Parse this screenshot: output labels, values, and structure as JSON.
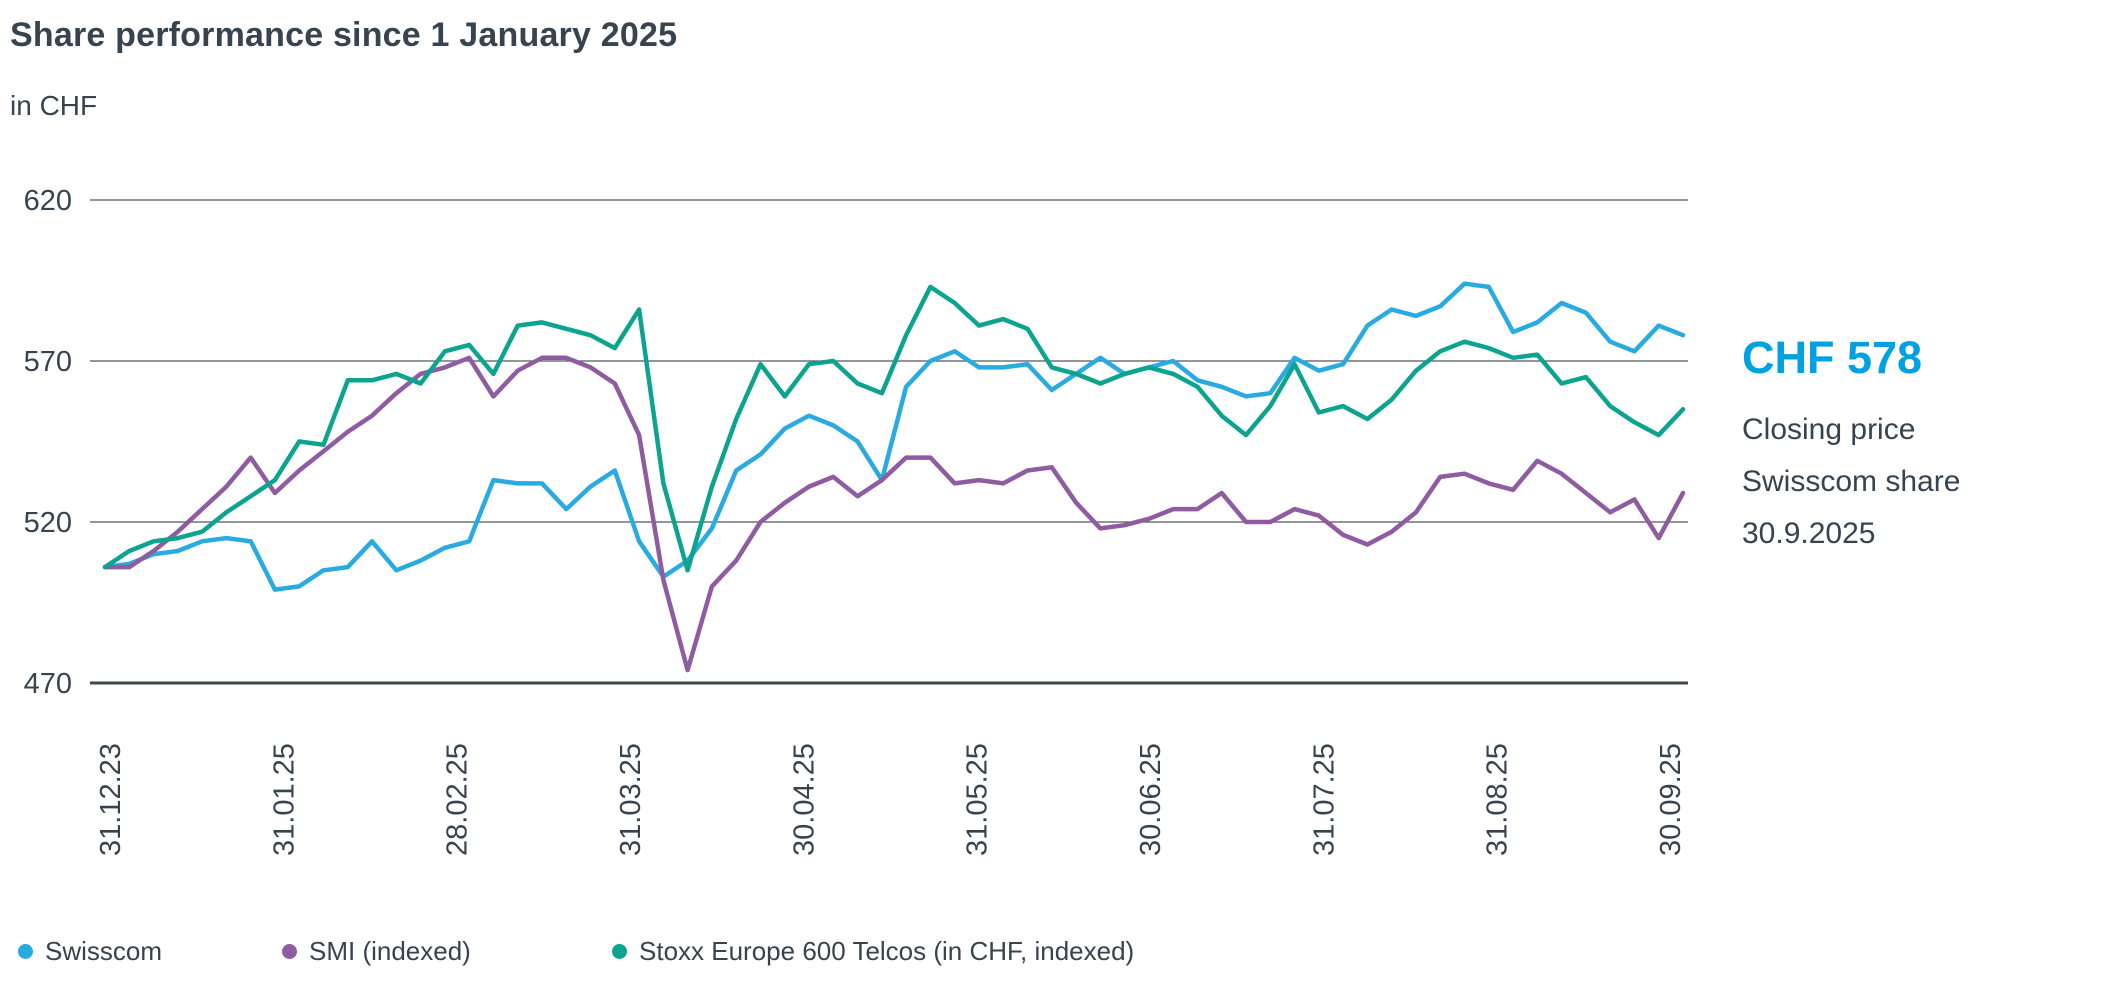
{
  "header": {
    "title": "Share performance since 1 January 2025",
    "subtitle": "in CHF"
  },
  "annotation": {
    "price": "CHF 578",
    "lines": [
      "Closing price",
      "Swisscom share",
      "30.9.2025"
    ],
    "price_color": "#00A1E3"
  },
  "colors": {
    "text": "#37434F",
    "gridline": "#50565C",
    "axis_line": "#42474D"
  },
  "chart_data": {
    "type": "line",
    "title": "Share performance since 1 January 2025",
    "xlabel": "",
    "ylabel": "in CHF",
    "ylim": [
      470,
      620
    ],
    "yticks": [
      620,
      570,
      520,
      470
    ],
    "grid": "horizontal",
    "legend_position": "bottom",
    "x_tick_labels": [
      "31.12.23",
      "31.01.25",
      "28.02.25",
      "31.03.25",
      "30.04.25",
      "31.05.25",
      "30.06.25",
      "31.07.25",
      "31.08.25",
      "30.09.25"
    ],
    "series": [
      {
        "id": "swisscom",
        "name": "Swisscom",
        "color": "#29ABE2",
        "values": [
          506,
          507,
          510,
          511,
          514,
          515,
          514,
          499,
          500,
          505,
          506,
          514,
          505,
          508,
          512,
          514,
          533,
          532,
          532,
          524,
          531,
          536,
          514,
          503,
          508,
          518,
          536,
          541,
          549,
          553,
          550,
          545,
          533,
          562,
          570,
          573,
          568,
          568,
          569,
          561,
          566,
          571,
          566,
          568,
          570,
          564,
          562,
          559,
          560,
          571,
          567,
          569,
          581,
          586,
          584,
          587,
          594,
          593,
          579,
          582,
          588,
          585,
          576,
          573,
          581,
          578
        ]
      },
      {
        "id": "smi",
        "name": "SMI (indexed)",
        "color": "#8F5CA1",
        "values": [
          506,
          506,
          511,
          517,
          524,
          531,
          540,
          529,
          536,
          542,
          548,
          553,
          560,
          566,
          568,
          571,
          559,
          567,
          571,
          571,
          568,
          563,
          547,
          502,
          474,
          500,
          508,
          520,
          526,
          531,
          534,
          528,
          533,
          540,
          540,
          532,
          533,
          532,
          536,
          537,
          526,
          518,
          519,
          521,
          524,
          524,
          529,
          520,
          520,
          524,
          522,
          516,
          513,
          517,
          523,
          534,
          535,
          532,
          530,
          539,
          535,
          529,
          523,
          527,
          515,
          529
        ]
      },
      {
        "id": "stoxx",
        "name": "Stoxx Europe 600 Telcos (in CHF, indexed)",
        "color": "#0CA48F",
        "values": [
          506,
          511,
          514,
          515,
          517,
          523,
          528,
          533,
          545,
          544,
          564,
          564,
          566,
          563,
          573,
          575,
          566,
          581,
          582,
          580,
          578,
          574,
          586,
          532,
          505,
          531,
          552,
          569,
          559,
          569,
          570,
          563,
          560,
          578,
          593,
          588,
          581,
          583,
          580,
          568,
          566,
          563,
          566,
          568,
          566,
          562,
          553,
          547,
          556,
          569,
          554,
          556,
          552,
          558,
          567,
          573,
          576,
          574,
          571,
          572,
          563,
          565,
          556,
          551,
          547,
          555
        ]
      }
    ]
  }
}
